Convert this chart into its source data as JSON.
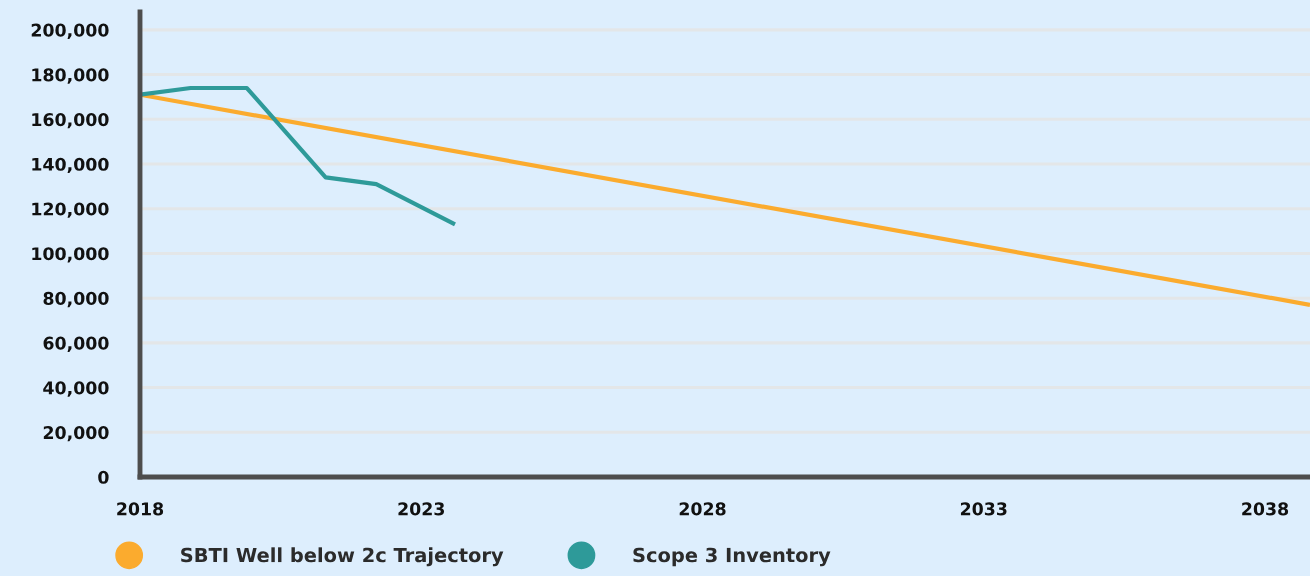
{
  "chart_data": {
    "type": "line",
    "series": [
      {
        "name": "SBTI Well below 2c Trajectory",
        "color": "#fbab2e",
        "x": [
          2018,
          2038.8
        ],
        "values": [
          171000,
          77000
        ]
      },
      {
        "name": "Scope 3 Inventory",
        "color": "#2e9a99",
        "x": [
          2018,
          2018.9,
          2019.9,
          2021.3,
          2022.2,
          2023.6
        ],
        "values": [
          171000,
          174000,
          174000,
          134000,
          131000,
          113000
        ]
      }
    ],
    "xlim": [
      2018,
      2038.8
    ],
    "xticks": [
      2018,
      2023,
      2028,
      2033,
      2038
    ],
    "ylim": [
      0,
      208000
    ],
    "yticks": [
      0,
      {
        "value": 20000,
        "label": "20,000"
      },
      {
        "value": 40000,
        "label": "40,000"
      },
      {
        "value": 60000,
        "label": "60,000"
      },
      {
        "value": 80000,
        "label": "80,000"
      },
      {
        "value": 100000,
        "label": "100,000"
      },
      {
        "value": 120000,
        "label": "120,000"
      },
      {
        "value": 140000,
        "label": "140,000"
      },
      {
        "value": 160000,
        "label": "160,000"
      },
      {
        "value": 180000,
        "label": "180,000"
      },
      {
        "value": 200000,
        "label": "200,000"
      }
    ],
    "grid": "y",
    "legend": "bottom",
    "line_style": "solid"
  }
}
